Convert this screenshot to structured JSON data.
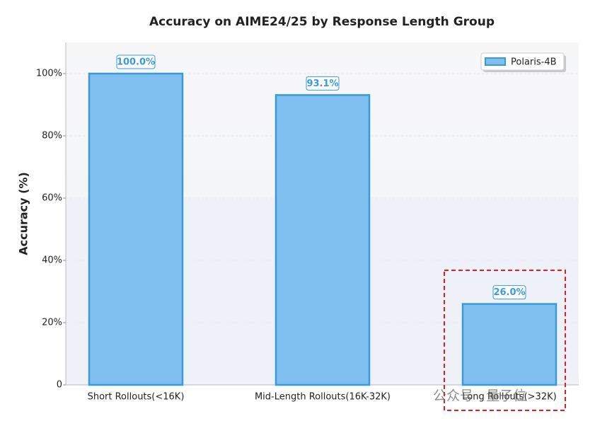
{
  "chart_data": {
    "type": "bar",
    "title": "Accuracy on AIME24/25 by Response Length Group",
    "y_label": "Accuracy (%)",
    "categories": [
      "Short Rollouts(<16K)",
      "Mid-Length Rollouts(16K-32K)",
      "Long Rollouts(>32K)"
    ],
    "series": [
      {
        "name": "Polaris-4B",
        "color": "#7fbfef",
        "values": [
          100,
          93.1,
          26
        ],
        "value_labels": [
          "100.0%",
          "93.1%",
          "26.0%"
        ]
      }
    ],
    "ylim": [
      0,
      110
    ],
    "yticks": [
      0,
      {
        "value": 20,
        "label": "20%"
      },
      {
        "value": 40,
        "label": "40%"
      },
      {
        "value": 60,
        "label": "60%"
      },
      {
        "value": 80,
        "label": "80%"
      },
      {
        "value": 100,
        "label": "100%"
      }
    ],
    "grid": true,
    "legend": "upper right",
    "watermark": "公众号 · 量子位"
  }
}
